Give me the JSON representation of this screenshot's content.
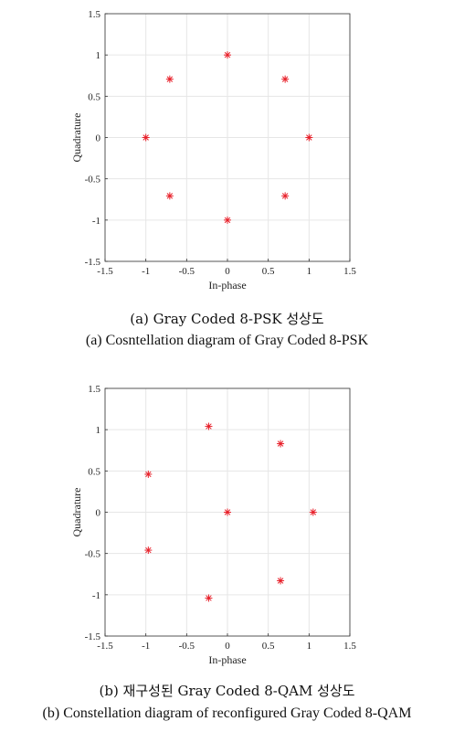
{
  "chart_data": [
    {
      "type": "scatter",
      "marker": "asterisk",
      "marker_color": "#e8202a",
      "xlabel": "In-phase",
      "ylabel": "Quadrature",
      "xlim": [
        -1.5,
        1.5
      ],
      "ylim": [
        -1.5,
        1.5
      ],
      "xticks": [
        "-1.5",
        "-1",
        "-0.5",
        "0",
        "0.5",
        "1",
        "1.5"
      ],
      "yticks": [
        "1.5",
        "1",
        "0.5",
        "0",
        "-0.5",
        "-1",
        "-1.5"
      ],
      "grid": true,
      "points": [
        {
          "x": 0,
          "y": 1
        },
        {
          "x": 0.707,
          "y": 0.707
        },
        {
          "x": 1,
          "y": 0
        },
        {
          "x": 0.707,
          "y": -0.707
        },
        {
          "x": 0,
          "y": -1
        },
        {
          "x": -0.707,
          "y": -0.707
        },
        {
          "x": -1,
          "y": 0
        },
        {
          "x": -0.707,
          "y": 0.707
        }
      ]
    },
    {
      "type": "scatter",
      "marker": "asterisk",
      "marker_color": "#e8202a",
      "xlabel": "In-phase",
      "ylabel": "Quadrature",
      "xlim": [
        -1.5,
        1.5
      ],
      "ylim": [
        -1.5,
        1.5
      ],
      "xticks": [
        "-1.5",
        "-1",
        "-0.5",
        "0",
        "0.5",
        "1",
        "1.5"
      ],
      "yticks": [
        "1.5",
        "1",
        "0.5",
        "0",
        "-0.5",
        "-1",
        "-1.5"
      ],
      "grid": true,
      "points": [
        {
          "x": -0.23,
          "y": 1.04
        },
        {
          "x": 0.65,
          "y": 0.83
        },
        {
          "x": -0.97,
          "y": 0.46
        },
        {
          "x": 0,
          "y": 0
        },
        {
          "x": 1.05,
          "y": 0
        },
        {
          "x": -0.97,
          "y": -0.46
        },
        {
          "x": 0.65,
          "y": -0.83
        },
        {
          "x": -0.23,
          "y": -1.04
        }
      ]
    }
  ],
  "captions": {
    "a_ko": "(a)  Gray  Coded  8-PSK  성상도",
    "a_en": "(a)  Cosntellation  diagram  of  Gray  Coded  8-PSK",
    "b_ko": "(b)  재구성된  Gray  Coded  8-QAM  성상도",
    "b_en": "(b) Constellation diagram of reconfigured Gray Coded 8-QAM"
  }
}
